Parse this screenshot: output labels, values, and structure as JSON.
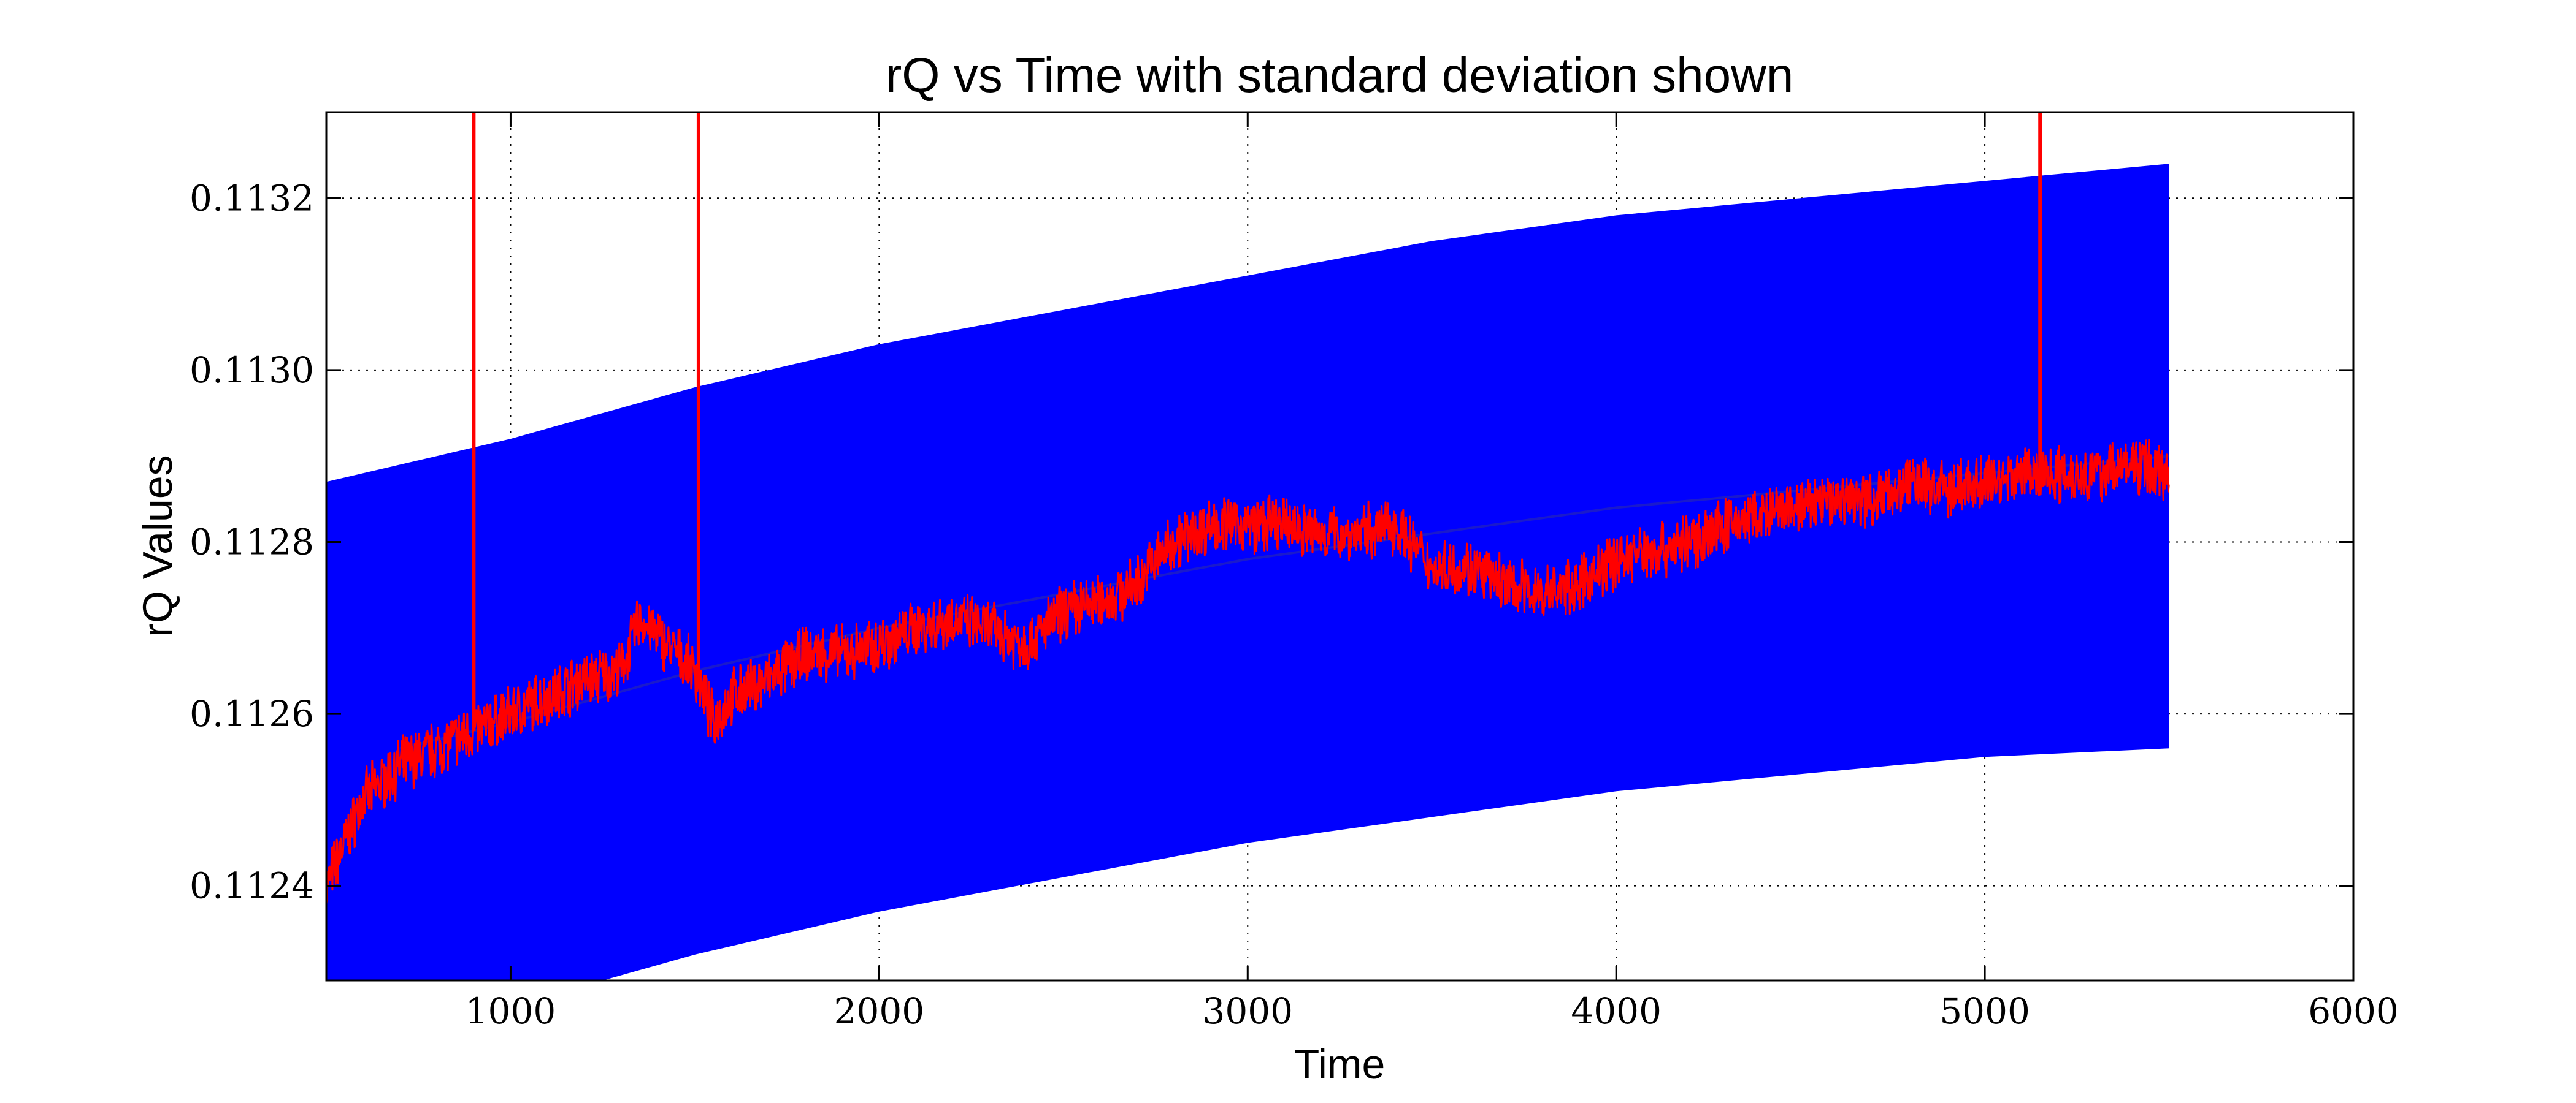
{
  "chart_data": {
    "type": "line",
    "title": "rQ vs Time with standard deviation shown",
    "xlabel": "Time",
    "ylabel": "rQ Values",
    "xlim": [
      500,
      6000
    ],
    "ylim": [
      0.11229,
      0.1133
    ],
    "x_ticks": [
      1000,
      2000,
      3000,
      4000,
      5000,
      6000
    ],
    "x_tick_labels": [
      "1000",
      "2000",
      "3000",
      "4000",
      "5000",
      "6000"
    ],
    "y_ticks": [
      0.1124,
      0.1126,
      0.1128,
      0.113,
      0.1132
    ],
    "y_tick_labels": [
      "0.1124",
      "0.1126",
      "0.1128",
      "0.1130",
      "0.1132"
    ],
    "grid": true,
    "legend": "none",
    "colors": {
      "band": "#0000ff",
      "mean": "#0000ff",
      "raw": "#ff0000"
    },
    "std_band": {
      "x": [
        500,
        1000,
        1500,
        2000,
        2500,
        3000,
        3500,
        4000,
        4500,
        5000,
        5500
      ],
      "upper": [
        0.11287,
        0.11292,
        0.11298,
        0.11303,
        0.11307,
        0.11311,
        0.11315,
        0.11318,
        0.1132,
        0.11322,
        0.11324
      ],
      "lower": [
        0.1122,
        0.11226,
        0.11232,
        0.11237,
        0.11241,
        0.11245,
        0.11248,
        0.11251,
        0.11253,
        0.11255,
        0.11256
      ]
    },
    "series": [
      {
        "x": [
          700,
          1000,
          1500,
          2000,
          2500,
          3000,
          3500,
          4000,
          4500,
          5000,
          5500
        ],
        "values": [
          0.11256,
          0.11259,
          0.11265,
          0.1127,
          0.11274,
          0.11278,
          0.11281,
          0.11284,
          0.11286,
          0.11288,
          0.1129
        ]
      },
      {
        "x": [
          500,
          600,
          700,
          800,
          900,
          1000,
          1100,
          1200,
          1300,
          1350,
          1400,
          1500,
          1550,
          1600,
          1700,
          1800,
          1900,
          2000,
          2100,
          2200,
          2300,
          2400,
          2500,
          2600,
          2700,
          2750,
          2800,
          2900,
          3000,
          3100,
          3200,
          3300,
          3400,
          3500,
          3600,
          3700,
          3800,
          3900,
          4000,
          4100,
          4200,
          4300,
          4400,
          4500,
          4600,
          4700,
          4800,
          4900,
          5000,
          5100,
          5200,
          5300,
          5400,
          5500
        ],
        "values": [
          0.1124,
          0.1125,
          0.11254,
          0.11256,
          0.11258,
          0.1126,
          0.11262,
          0.11264,
          0.11265,
          0.11271,
          0.11269,
          0.11265,
          0.11259,
          0.11262,
          0.11264,
          0.11267,
          0.11267,
          0.11268,
          0.1127,
          0.11271,
          0.1127,
          0.11268,
          0.11272,
          0.11273,
          0.11275,
          0.11278,
          0.1128,
          0.11282,
          0.11282,
          0.11282,
          0.11281,
          0.11281,
          0.11282,
          0.11277,
          0.11277,
          0.11275,
          0.11274,
          0.11275,
          0.11278,
          0.11279,
          0.1128,
          0.11282,
          0.11283,
          0.11284,
          0.11285,
          0.11285,
          0.11287,
          0.11286,
          0.11287,
          0.11288,
          0.11288,
          0.11288,
          0.11289,
          0.11288
        ],
        "spikes": [
          {
            "x": 900,
            "y": 0.1134
          },
          {
            "x": 1510,
            "y": 0.1134
          },
          {
            "x": 5150,
            "y": 0.1134
          }
        ]
      }
    ]
  }
}
